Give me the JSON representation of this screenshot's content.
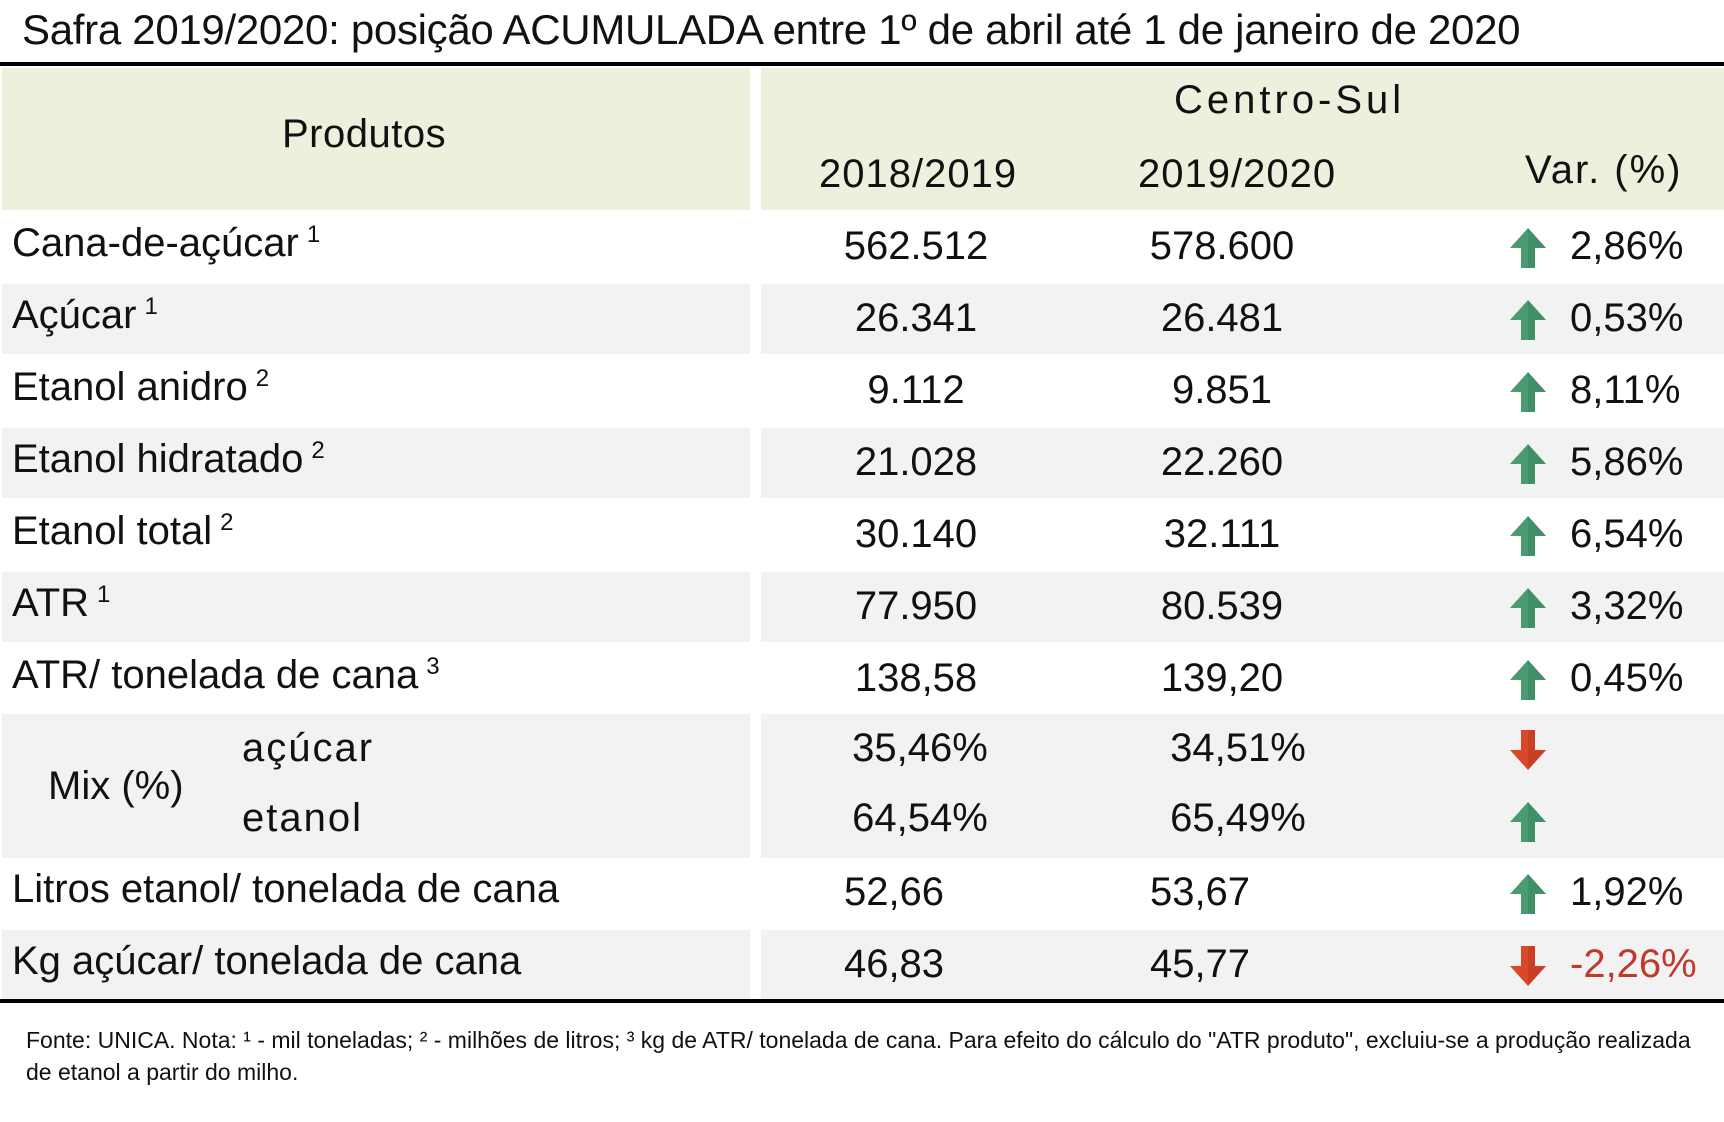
{
  "title": "Safra 2019/2020: posição ACUMULADA entre 1º de abril até 1 de janeiro de 2020",
  "header": {
    "products": "Produtos",
    "region": "Centro-Sul",
    "col_prev": "2018/2019",
    "col_curr": "2019/2020",
    "col_var": "Var. (%)"
  },
  "rows": [
    {
      "label": "Cana-de-açúcar",
      "note": "1",
      "prev": "562.512",
      "curr": "578.600",
      "trend": "up",
      "var": "2,86%"
    },
    {
      "label": "Açúcar",
      "note": "1",
      "prev": "26.341",
      "curr": "26.481",
      "trend": "up",
      "var": "0,53%"
    },
    {
      "label": "Etanol anidro",
      "note": "2",
      "prev": "9.112",
      "curr": "9.851",
      "trend": "up",
      "var": "8,11%"
    },
    {
      "label": "Etanol hidratado",
      "note": "2",
      "prev": "21.028",
      "curr": "22.260",
      "trend": "up",
      "var": "5,86%"
    },
    {
      "label": "Etanol total",
      "note": "2",
      "prev": "30.140",
      "curr": "32.111",
      "trend": "up",
      "var": "6,54%"
    },
    {
      "label": "ATR",
      "note": "1",
      "prev": "77.950",
      "curr": "80.539",
      "trend": "up",
      "var": "3,32%"
    },
    {
      "label": "ATR/ tonelada de cana",
      "note": "3",
      "prev": "138,58",
      "curr": "139,20",
      "trend": "up",
      "var": "0,45%"
    }
  ],
  "mix": {
    "label": "Mix (%)",
    "sugar": {
      "label": "açúcar",
      "prev": "35,46%",
      "curr": "34,51%",
      "trend": "down"
    },
    "ethanol": {
      "label": "etanol",
      "prev": "64,54%",
      "curr": "65,49%",
      "trend": "up"
    }
  },
  "rows_after": [
    {
      "label": "Litros etanol/ tonelada de cana",
      "prev": "52,66",
      "curr": "53,67",
      "trend": "up",
      "var": "1,92%"
    },
    {
      "label": "Kg açúcar/ tonelada de cana",
      "prev": "46,83",
      "curr": "45,77",
      "trend": "down",
      "var": "-2,26%"
    }
  ],
  "footnote": "Fonte: UNICA. Nota: ¹ - mil toneladas; ² - milhões de litros; ³    kg de ATR/ tonelada de cana. Para efeito do cálculo do \"ATR produto\", excluiu-se a produção realizada de etanol a partir do milho.",
  "colors": {
    "header_bg": "#ebf1dd",
    "band_bg": "#f2f2f2",
    "up_arrow": "#4a9a72",
    "down_arrow": "#d9482b",
    "negative_text": "#c0392b"
  }
}
